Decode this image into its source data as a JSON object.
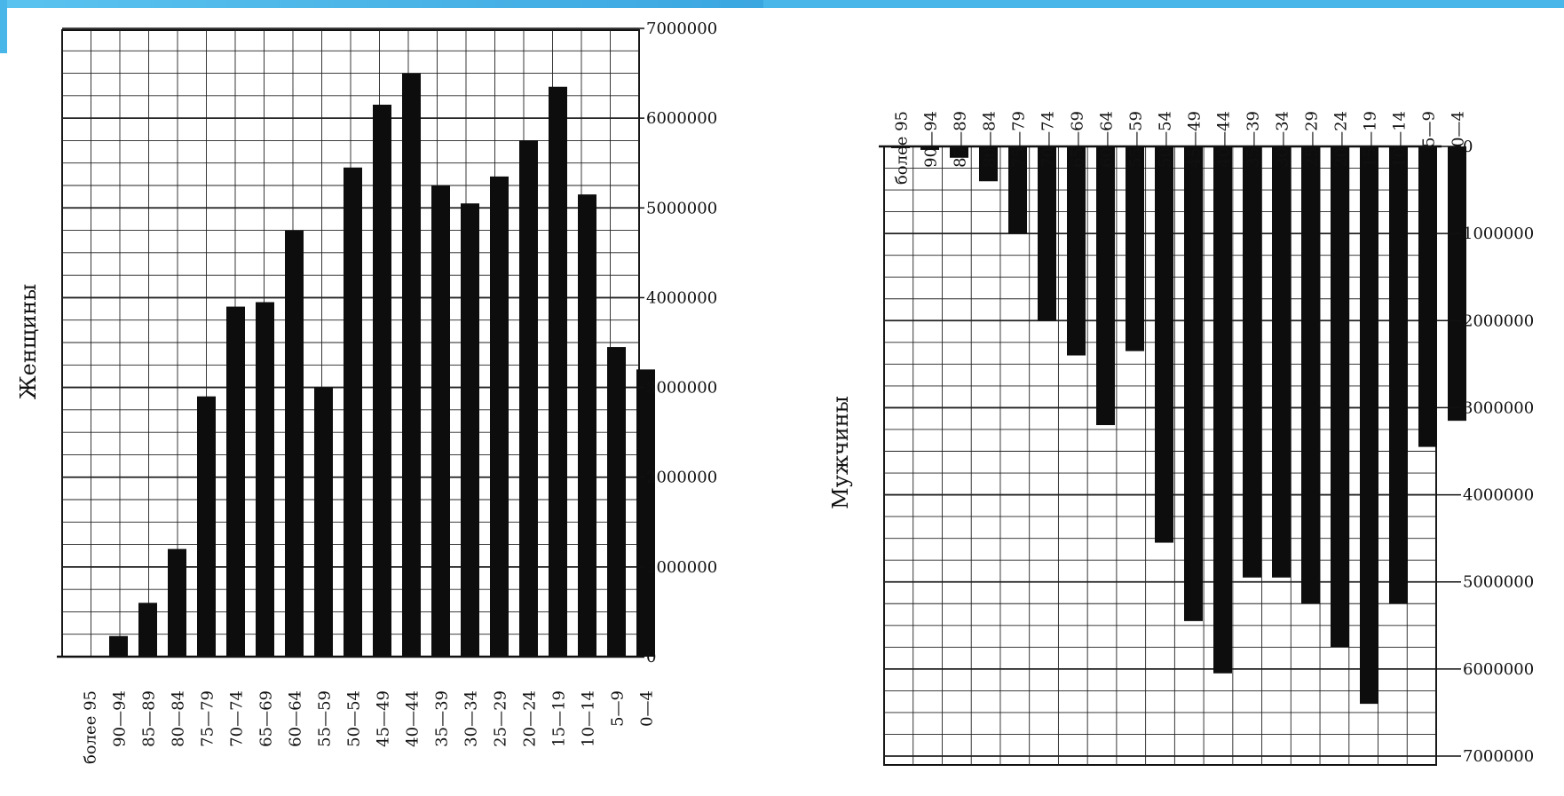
{
  "chart_data": [
    {
      "type": "bar",
      "title": "",
      "ylabel": "Женщины",
      "xlabel": "",
      "ylim": [
        0,
        7000000
      ],
      "yticks": [
        "0",
        "1000000",
        "2000000",
        "3000000",
        "4000000",
        "5000000",
        "6000000",
        "7000000"
      ],
      "categories": [
        "более 95",
        "90—94",
        "85—89",
        "80—84",
        "75—79",
        "70—74",
        "65—69",
        "60—64",
        "55—59",
        "50—54",
        "45—49",
        "40—44",
        "35—39",
        "30—34",
        "25—29",
        "20—24",
        "15—19",
        "10—14",
        "5—9",
        "0—4"
      ],
      "values": [
        0,
        230000,
        600000,
        1200000,
        2900000,
        3900000,
        3950000,
        4750000,
        3000000,
        5450000,
        6150000,
        6500000,
        5250000,
        5050000,
        5350000,
        5750000,
        6350000,
        5150000,
        3450000,
        3200000
      ],
      "orientation": "up",
      "grid": true
    },
    {
      "type": "bar",
      "title": "",
      "ylabel": "Мужчины",
      "xlabel": "",
      "ylim": [
        0,
        7000000
      ],
      "yticks": [
        "0",
        "1000000",
        "2000000",
        "3000000",
        "4000000",
        "5000000",
        "6000000",
        "7000000"
      ],
      "categories": [
        "более 95",
        "90—94",
        "85—89",
        "80—84",
        "75—79",
        "70—74",
        "65—69",
        "60—64",
        "55—59",
        "50—54",
        "45—49",
        "40—44",
        "35—39",
        "30—34",
        "25—29",
        "20—24",
        "15—19",
        "10—14",
        "5—9",
        "0—4"
      ],
      "values": [
        20000,
        40000,
        130000,
        400000,
        1000000,
        2000000,
        2400000,
        3200000,
        2350000,
        4550000,
        5450000,
        6050000,
        4950000,
        4950000,
        5250000,
        5750000,
        6400000,
        5250000,
        3450000,
        3150000
      ],
      "orientation": "down",
      "grid": true
    }
  ]
}
